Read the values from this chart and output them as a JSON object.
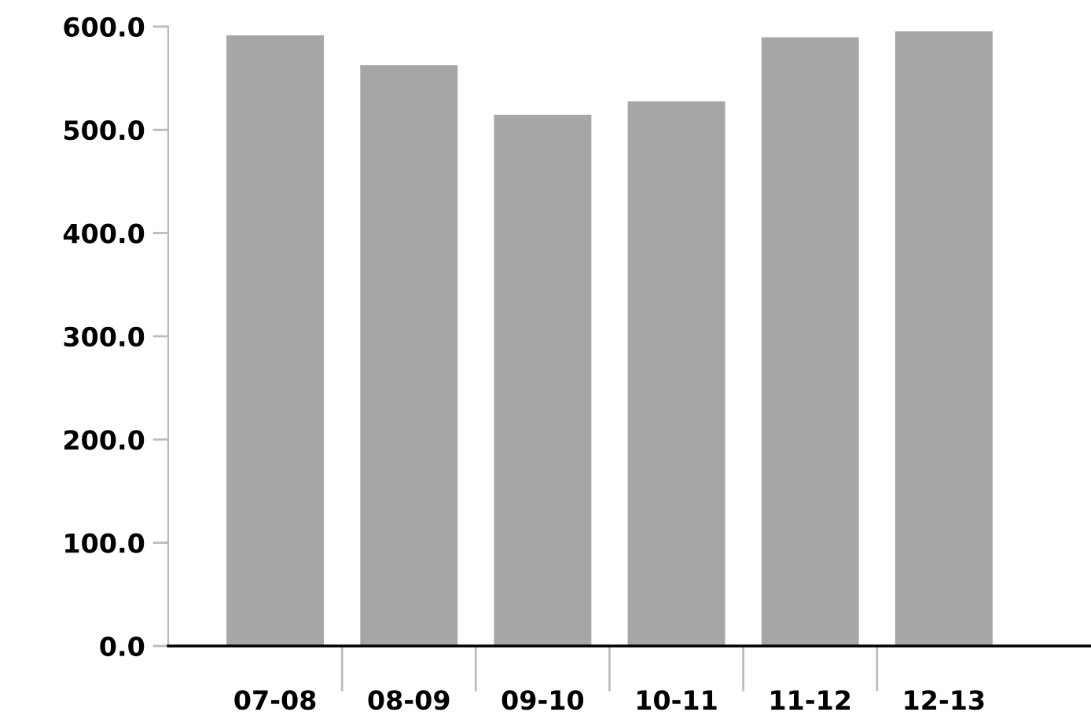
{
  "chart_data": {
    "type": "bar",
    "categories": [
      "07-08",
      "08-09",
      "09-10",
      "10-11",
      "11-12",
      "12-13"
    ],
    "values": [
      591,
      562,
      514,
      527,
      589,
      595
    ],
    "color": "#a6a6a6",
    "ylim": [
      0,
      600
    ],
    "yticks": [
      {
        "value": 0,
        "label": "0.0"
      },
      {
        "value": 100,
        "label": "100.0"
      },
      {
        "value": 200,
        "label": "200.0"
      },
      {
        "value": 300,
        "label": "300.0"
      },
      {
        "value": 400,
        "label": "400.0"
      },
      {
        "value": 500,
        "label": "500.0"
      },
      {
        "value": 600,
        "label": "600.0"
      }
    ],
    "grid": false,
    "legend": false
  }
}
